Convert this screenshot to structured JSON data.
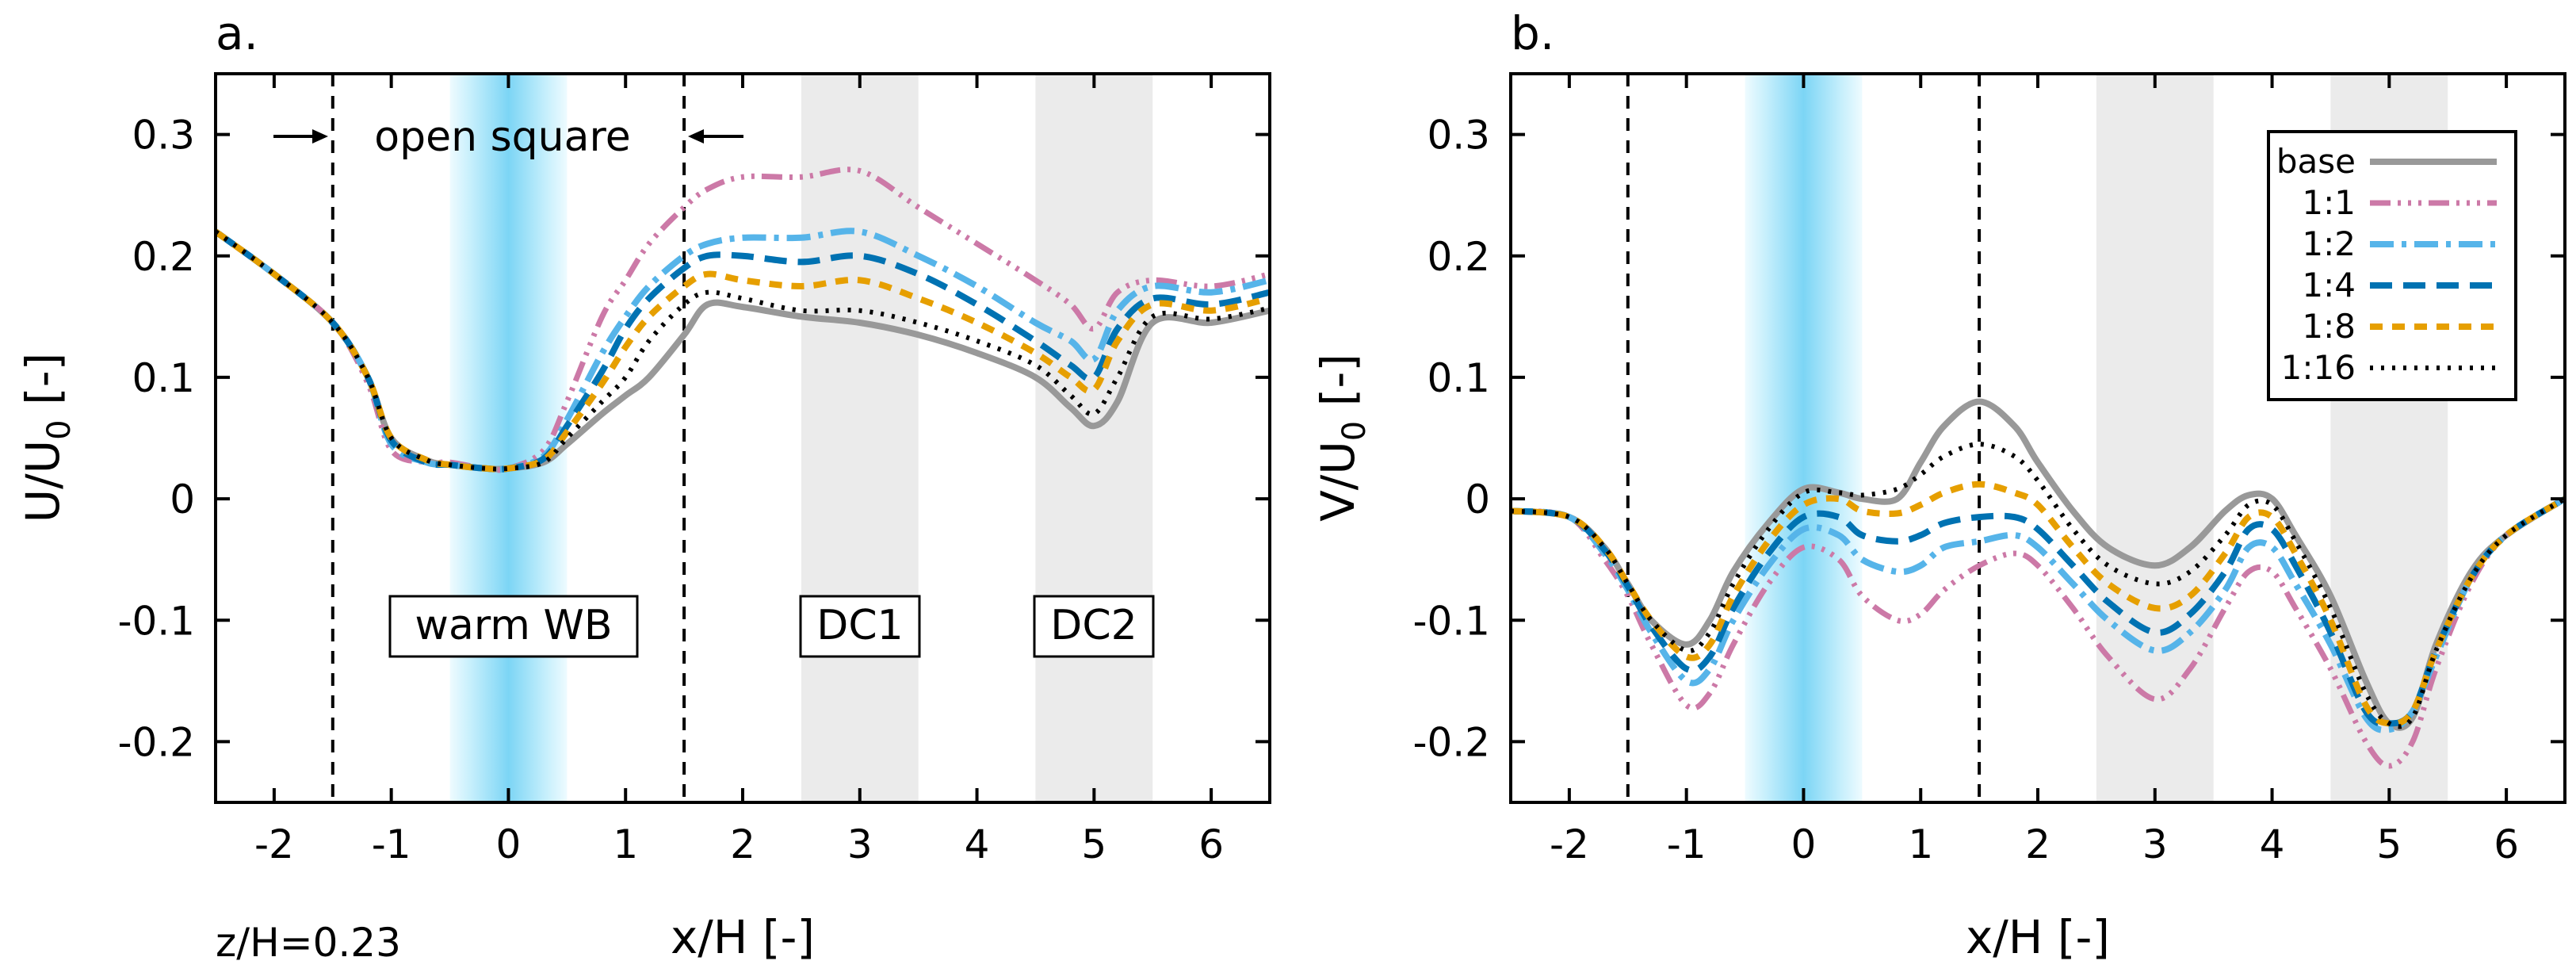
{
  "chart_data": [
    {
      "type": "line",
      "panel_label": "a.",
      "xlabel": "x/H [-]",
      "ylabel_main": "U/U",
      "ylabel_sub": "0",
      "ylabel_tail": " [-]",
      "xlim": [
        -2.5,
        6.5
      ],
      "ylim": [
        -0.25,
        0.35
      ],
      "xticks": [
        -2,
        -1,
        0,
        1,
        2,
        3,
        4,
        5,
        6
      ],
      "yticks": [
        -0.2,
        -0.1,
        0,
        0.1,
        0.2,
        0.3
      ],
      "ytick_labels": [
        "-0.2",
        "-0.1",
        "0",
        "0.1",
        "0.2",
        "0.3"
      ],
      "vlines": [
        -1.5,
        1.5
      ],
      "open_square_label": "open square",
      "footnote": "z/H=0.23",
      "region_labels": [
        {
          "text": "warm WB",
          "x": 0,
          "y": -0.105
        },
        {
          "text": "DC1",
          "x": 3,
          "y": -0.105
        },
        {
          "text": "DC2",
          "x": 5,
          "y": -0.105
        }
      ],
      "x": [
        -2.5,
        -2.0,
        -1.5,
        -1.2,
        -1.0,
        -0.7,
        -0.5,
        -0.2,
        0.0,
        0.3,
        0.5,
        0.8,
        1.0,
        1.2,
        1.5,
        1.7,
        2.0,
        2.5,
        3.0,
        3.5,
        4.0,
        4.5,
        4.8,
        5.0,
        5.2,
        5.5,
        6.0,
        6.5
      ],
      "series": [
        {
          "name": "base",
          "values": [
            0.22,
            0.185,
            0.145,
            0.1,
            0.05,
            0.032,
            0.028,
            0.025,
            0.025,
            0.03,
            0.045,
            0.07,
            0.085,
            0.1,
            0.135,
            0.16,
            0.158,
            0.15,
            0.145,
            0.135,
            0.12,
            0.1,
            0.075,
            0.06,
            0.08,
            0.145,
            0.145,
            0.155
          ]
        },
        {
          "name": "1:1",
          "values": [
            0.22,
            0.185,
            0.145,
            0.095,
            0.04,
            0.03,
            0.03,
            0.025,
            0.025,
            0.04,
            0.08,
            0.15,
            0.18,
            0.21,
            0.24,
            0.255,
            0.265,
            0.265,
            0.27,
            0.24,
            0.21,
            0.18,
            0.16,
            0.14,
            0.17,
            0.18,
            0.175,
            0.185
          ]
        },
        {
          "name": "1:2",
          "values": [
            0.22,
            0.185,
            0.145,
            0.1,
            0.045,
            0.03,
            0.028,
            0.025,
            0.025,
            0.035,
            0.065,
            0.12,
            0.15,
            0.175,
            0.2,
            0.21,
            0.215,
            0.215,
            0.22,
            0.2,
            0.175,
            0.145,
            0.13,
            0.115,
            0.155,
            0.175,
            0.17,
            0.18
          ]
        },
        {
          "name": "1:4",
          "values": [
            0.22,
            0.185,
            0.145,
            0.1,
            0.048,
            0.03,
            0.028,
            0.025,
            0.025,
            0.033,
            0.06,
            0.105,
            0.14,
            0.165,
            0.19,
            0.2,
            0.2,
            0.195,
            0.2,
            0.185,
            0.16,
            0.13,
            0.11,
            0.1,
            0.14,
            0.165,
            0.16,
            0.17
          ]
        },
        {
          "name": "1:8",
          "values": [
            0.22,
            0.185,
            0.145,
            0.1,
            0.05,
            0.032,
            0.028,
            0.025,
            0.025,
            0.032,
            0.055,
            0.095,
            0.125,
            0.15,
            0.175,
            0.185,
            0.18,
            0.175,
            0.18,
            0.165,
            0.145,
            0.12,
            0.1,
            0.09,
            0.13,
            0.16,
            0.155,
            0.165
          ]
        },
        {
          "name": "1:16",
          "values": [
            0.22,
            0.185,
            0.145,
            0.1,
            0.05,
            0.032,
            0.028,
            0.025,
            0.025,
            0.03,
            0.05,
            0.08,
            0.1,
            0.13,
            0.16,
            0.17,
            0.165,
            0.155,
            0.155,
            0.145,
            0.13,
            0.11,
            0.085,
            0.07,
            0.1,
            0.15,
            0.148,
            0.157
          ]
        }
      ]
    },
    {
      "type": "line",
      "panel_label": "b.",
      "xlabel": "x/H [-]",
      "ylabel_main": "V/U",
      "ylabel_sub": "0",
      "ylabel_tail": " [-]",
      "xlim": [
        -2.5,
        6.5
      ],
      "ylim": [
        -0.25,
        0.35
      ],
      "xticks": [
        -2,
        -1,
        0,
        1,
        2,
        3,
        4,
        5,
        6
      ],
      "yticks": [
        -0.2,
        -0.1,
        0,
        0.1,
        0.2,
        0.3
      ],
      "ytick_labels": [
        "-0.2",
        "-0.1",
        "0",
        "0.1",
        "0.2",
        "0.3"
      ],
      "vlines": [
        -1.5,
        1.5
      ],
      "legend": {
        "position": "top-right",
        "entries": [
          "base",
          "1:1",
          "1:2",
          "1:4",
          "1:8",
          "1:16"
        ]
      },
      "x": [
        -2.5,
        -2.0,
        -1.7,
        -1.5,
        -1.3,
        -1.0,
        -0.8,
        -0.6,
        -0.3,
        0.0,
        0.3,
        0.5,
        0.8,
        1.0,
        1.2,
        1.5,
        1.8,
        2.0,
        2.3,
        2.6,
        3.0,
        3.3,
        3.6,
        3.8,
        4.0,
        4.2,
        4.5,
        4.8,
        5.0,
        5.2,
        5.4,
        5.7,
        6.0,
        6.5
      ],
      "series": [
        {
          "name": "base",
          "values": [
            -0.01,
            -0.015,
            -0.04,
            -0.07,
            -0.1,
            -0.12,
            -0.1,
            -0.06,
            -0.02,
            0.008,
            0.005,
            0.0,
            0.0,
            0.03,
            0.06,
            0.08,
            0.06,
            0.03,
            -0.01,
            -0.04,
            -0.055,
            -0.04,
            -0.01,
            0.003,
            0.0,
            -0.03,
            -0.08,
            -0.15,
            -0.185,
            -0.18,
            -0.12,
            -0.06,
            -0.03,
            0.0
          ]
        },
        {
          "name": "1:1",
          "values": [
            -0.01,
            -0.015,
            -0.05,
            -0.08,
            -0.12,
            -0.17,
            -0.16,
            -0.12,
            -0.07,
            -0.04,
            -0.05,
            -0.08,
            -0.1,
            -0.095,
            -0.075,
            -0.055,
            -0.045,
            -0.055,
            -0.09,
            -0.13,
            -0.165,
            -0.14,
            -0.09,
            -0.06,
            -0.06,
            -0.09,
            -0.14,
            -0.2,
            -0.22,
            -0.2,
            -0.14,
            -0.07,
            -0.03,
            0.0
          ]
        },
        {
          "name": "1:2",
          "values": [
            -0.01,
            -0.015,
            -0.045,
            -0.075,
            -0.11,
            -0.15,
            -0.14,
            -0.1,
            -0.055,
            -0.025,
            -0.03,
            -0.05,
            -0.06,
            -0.055,
            -0.04,
            -0.035,
            -0.03,
            -0.04,
            -0.07,
            -0.1,
            -0.125,
            -0.11,
            -0.075,
            -0.04,
            -0.04,
            -0.07,
            -0.12,
            -0.18,
            -0.19,
            -0.175,
            -0.13,
            -0.065,
            -0.03,
            0.0
          ]
        },
        {
          "name": "1:4",
          "values": [
            -0.01,
            -0.015,
            -0.042,
            -0.072,
            -0.105,
            -0.14,
            -0.13,
            -0.09,
            -0.045,
            -0.015,
            -0.015,
            -0.03,
            -0.035,
            -0.03,
            -0.02,
            -0.015,
            -0.015,
            -0.025,
            -0.055,
            -0.085,
            -0.11,
            -0.095,
            -0.06,
            -0.025,
            -0.025,
            -0.055,
            -0.11,
            -0.175,
            -0.185,
            -0.175,
            -0.125,
            -0.065,
            -0.03,
            0.0
          ]
        },
        {
          "name": "1:8",
          "values": [
            -0.01,
            -0.015,
            -0.04,
            -0.07,
            -0.1,
            -0.13,
            -0.12,
            -0.08,
            -0.035,
            -0.005,
            0.0,
            -0.01,
            -0.012,
            -0.005,
            0.005,
            0.012,
            0.005,
            -0.005,
            -0.04,
            -0.07,
            -0.09,
            -0.08,
            -0.045,
            -0.015,
            -0.015,
            -0.045,
            -0.1,
            -0.17,
            -0.185,
            -0.175,
            -0.125,
            -0.065,
            -0.03,
            0.0
          ]
        },
        {
          "name": "1:16",
          "values": [
            -0.01,
            -0.015,
            -0.04,
            -0.07,
            -0.1,
            -0.125,
            -0.11,
            -0.07,
            -0.025,
            0.005,
            0.005,
            0.003,
            0.008,
            0.02,
            0.035,
            0.045,
            0.035,
            0.015,
            -0.025,
            -0.055,
            -0.07,
            -0.06,
            -0.03,
            -0.005,
            -0.005,
            -0.035,
            -0.09,
            -0.16,
            -0.185,
            -0.18,
            -0.125,
            -0.065,
            -0.03,
            0.0
          ]
        }
      ]
    }
  ],
  "series_styles": [
    {
      "name": "base",
      "color": "#999999",
      "dash": "",
      "width": 8
    },
    {
      "name": "1:1",
      "color": "#cc79a7",
      "dash": "26 9 4 9 4 9 4 9",
      "width": 7
    },
    {
      "name": "1:2",
      "color": "#56b4e9",
      "dash": "30 10 6 10",
      "width": 8
    },
    {
      "name": "1:4",
      "color": "#0072b2",
      "dash": "28 14",
      "width": 8
    },
    {
      "name": "1:8",
      "color": "#e69f00",
      "dash": "16 12",
      "width": 8
    },
    {
      "name": "1:16",
      "color": "#000000",
      "dash": "4 10",
      "width": 6
    }
  ],
  "colors": {
    "warm_band": "#b8ebfb",
    "warm_core": "#7cd5f5",
    "dc_band": "#ebebeb"
  },
  "shaded_regions": {
    "warm_wb": {
      "x": [
        -0.5,
        0.5
      ],
      "core": [
        -0.15,
        0.15
      ]
    },
    "dc1": {
      "x": [
        2.5,
        3.5
      ]
    },
    "dc2": {
      "x": [
        4.5,
        5.5
      ]
    }
  }
}
